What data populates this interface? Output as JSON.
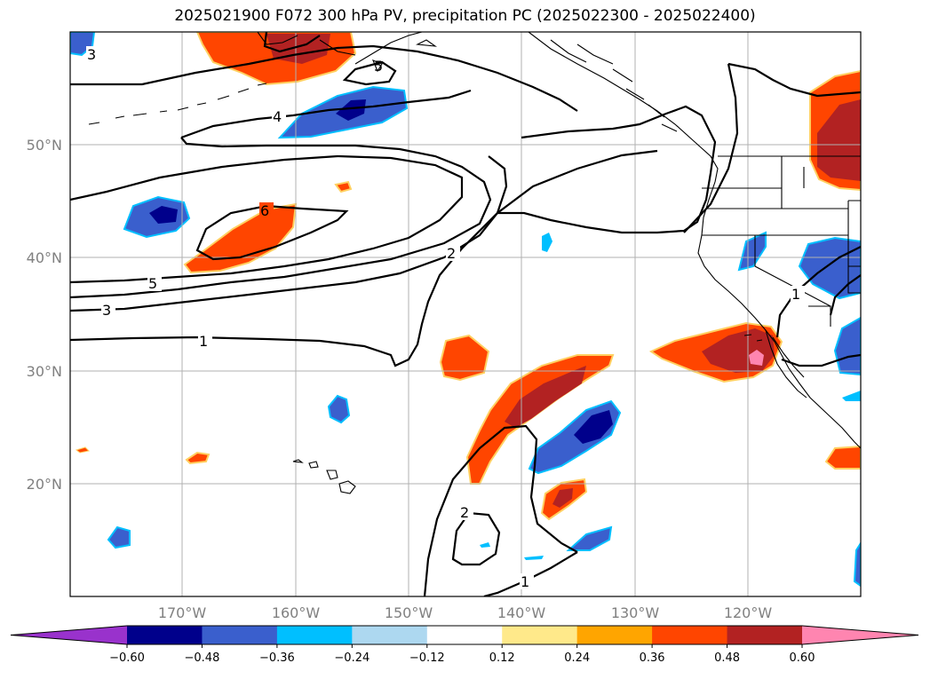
{
  "title": "2025021900 F072 300 hPa PV, precipitation PC (2025022300 - 2025022400)",
  "lon_ticks": [
    "170°W",
    "160°W",
    "150°W",
    "140°W",
    "130°W",
    "120°W"
  ],
  "lat_ticks": [
    "50°N",
    "40°N",
    "30°N",
    "20°N"
  ],
  "colorbar": {
    "tick_labels": [
      "−0.60",
      "−0.48",
      "−0.36",
      "−0.24",
      "−0.12",
      "0.12",
      "0.24",
      "0.36",
      "0.48",
      "0.60"
    ],
    "colors": [
      "#9932cc",
      "#00008b",
      "#3a5fcd",
      "#00bfff",
      "#add8f0",
      "#ffffff",
      "#ffe98a",
      "#ffa500",
      "#ff4500",
      "#b22222",
      "#ff85b0"
    ]
  },
  "pv_contour_labels": [
    "3",
    "5",
    "4",
    "6",
    "5",
    "3",
    "1",
    "2",
    "2",
    "1",
    "1"
  ],
  "colors": {
    "grid": "#b0b0b0",
    "coast": "#000000",
    "contour": "#000000"
  }
}
